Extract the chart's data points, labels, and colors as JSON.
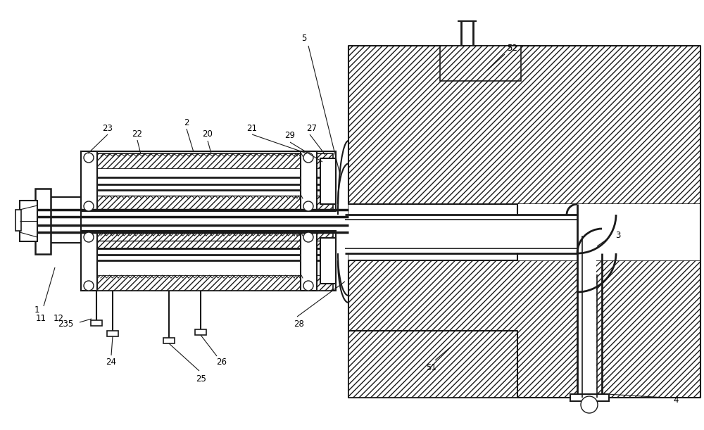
{
  "bg_color": "#ffffff",
  "lc": "#1a1a1a",
  "fig_width": 10.0,
  "fig_height": 6.11
}
